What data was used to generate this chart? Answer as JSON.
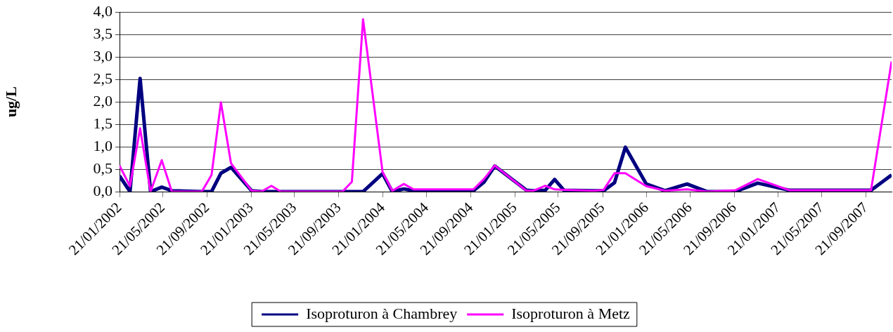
{
  "chart_data": {
    "type": "line",
    "ylabel": "ug/L",
    "x": [
      "2002-01-21",
      "2002-02-19",
      "2002-03-19",
      "2002-04-17",
      "2002-05-18",
      "2002-06-15",
      "2002-09-06",
      "2002-10-03",
      "2002-10-29",
      "2002-11-26",
      "2003-01-22",
      "2003-02-18",
      "2003-03-18",
      "2003-04-13",
      "2003-10-01",
      "2003-10-27",
      "2003-11-27",
      "2004-01-20",
      "2004-02-16",
      "2004-03-19",
      "2004-04-15",
      "2004-09-28",
      "2004-10-27",
      "2004-11-26",
      "2005-02-22",
      "2005-03-13",
      "2005-04-15",
      "2005-05-11",
      "2005-06-06",
      "2005-08-29",
      "2005-09-24",
      "2005-10-24",
      "2005-11-23",
      "2006-01-20",
      "2006-03-13",
      "2006-05-13",
      "2006-07-08",
      "2006-09-24",
      "2006-11-25",
      "2007-02-21",
      "2007-10-05",
      "2007-12-01"
    ],
    "series": [
      {
        "name": "Isoproturon à Chambrey",
        "color": "#000080",
        "values": [
          0.35,
          0,
          2.52,
          0,
          0.1,
          0.02,
          0,
          0,
          0.41,
          0.54,
          0.02,
          0,
          0,
          0,
          0,
          0,
          0,
          0.4,
          0,
          0.06,
          0.02,
          0.02,
          0.21,
          0.57,
          0.03,
          0.02,
          0.03,
          0.27,
          0.03,
          0.02,
          0.02,
          0.2,
          0.99,
          0.17,
          0.02,
          0.17,
          0,
          0,
          0.19,
          0.03,
          0.03,
          0.37
        ]
      },
      {
        "name": "Isoproturon à Metz",
        "color": "#ff00ff",
        "values": [
          0.58,
          0.12,
          1.41,
          0,
          0.7,
          0,
          0,
          0.37,
          1.99,
          0.63,
          0.02,
          0,
          0.13,
          0,
          0,
          0.22,
          3.84,
          0.44,
          0.02,
          0.17,
          0.05,
          0.05,
          0.28,
          0.58,
          0.02,
          0.02,
          0.13,
          0.05,
          0.04,
          0.02,
          0.04,
          0.41,
          0.41,
          0.12,
          0.02,
          0.05,
          0,
          0.03,
          0.28,
          0.03,
          0.03,
          2.9
        ]
      }
    ],
    "xlim": [
      "2002-01-21",
      "2007-12-01"
    ],
    "xticks": [
      {
        "value": "2002-01-21",
        "label": "21/01/2002"
      },
      {
        "value": "2002-05-21",
        "label": "21/05/2002"
      },
      {
        "value": "2002-09-21",
        "label": "21/09/2002"
      },
      {
        "value": "2003-01-21",
        "label": "21/01/2003"
      },
      {
        "value": "2003-05-21",
        "label": "21/05/2003"
      },
      {
        "value": "2003-09-21",
        "label": "21/09/2003"
      },
      {
        "value": "2004-01-21",
        "label": "21/01/2004"
      },
      {
        "value": "2004-05-21",
        "label": "21/05/2004"
      },
      {
        "value": "2004-09-21",
        "label": "21/09/2004"
      },
      {
        "value": "2005-01-21",
        "label": "21/01/2005"
      },
      {
        "value": "2005-05-21",
        "label": "21/05/2005"
      },
      {
        "value": "2005-09-21",
        "label": "21/09/2005"
      },
      {
        "value": "2006-01-21",
        "label": "21/01/2006"
      },
      {
        "value": "2006-05-21",
        "label": "21/05/2006"
      },
      {
        "value": "2006-09-21",
        "label": "21/09/2006"
      },
      {
        "value": "2007-01-21",
        "label": "21/01/2007"
      },
      {
        "value": "2007-05-21",
        "label": "21/05/2007"
      },
      {
        "value": "2007-09-21",
        "label": "21/09/2007"
      }
    ],
    "ylim": [
      0,
      4
    ],
    "yticks": [
      {
        "value": 0,
        "label": "0,0"
      },
      {
        "value": 0.5,
        "label": "0,5"
      },
      {
        "value": 1,
        "label": "1,0"
      },
      {
        "value": 1.5,
        "label": "1,5"
      },
      {
        "value": 2,
        "label": "2,0"
      },
      {
        "value": 2.5,
        "label": "2,5"
      },
      {
        "value": 3,
        "label": "3,0"
      },
      {
        "value": 3.5,
        "label": "3,5"
      },
      {
        "value": 4,
        "label": "4,0"
      }
    ],
    "grid": "y",
    "legend": "bottom",
    "marker": "none",
    "line_style": "solid"
  }
}
